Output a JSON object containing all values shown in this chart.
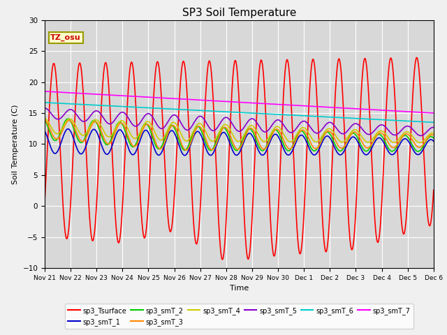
{
  "title": "SP3 Soil Temperature",
  "ylabel": "Soil Temperature (C)",
  "xlabel": "Time",
  "ylim": [
    -10,
    30
  ],
  "plot_bg_color": "#d8d8d8",
  "fig_bg_color": "#f0f0f0",
  "grid_color": "#ffffff",
  "tz_label": "TZ_osu",
  "series": {
    "sp3_Tsurface": {
      "color": "#ff0000",
      "lw": 1.2
    },
    "sp3_smT_1": {
      "color": "#0000cc",
      "lw": 1.2
    },
    "sp3_smT_2": {
      "color": "#00cc00",
      "lw": 1.2
    },
    "sp3_smT_3": {
      "color": "#ff8800",
      "lw": 1.2
    },
    "sp3_smT_4": {
      "color": "#cccc00",
      "lw": 1.2
    },
    "sp3_smT_5": {
      "color": "#8800cc",
      "lw": 1.2
    },
    "sp3_smT_6": {
      "color": "#00cccc",
      "lw": 1.2
    },
    "sp3_smT_7": {
      "color": "#ff00ff",
      "lw": 1.2
    }
  },
  "x_tick_labels": [
    "Nov 21",
    "Nov 22",
    "Nov 23",
    "Nov 24",
    "Nov 25",
    "Nov 26",
    "Nov 27",
    "Nov 28",
    "Nov 29",
    "Nov 30",
    "Dec 1",
    "Dec 2",
    "Dec 3",
    "Dec 4",
    "Dec 5",
    "Dec 6"
  ],
  "num_days": 15,
  "pts_per_day": 96
}
